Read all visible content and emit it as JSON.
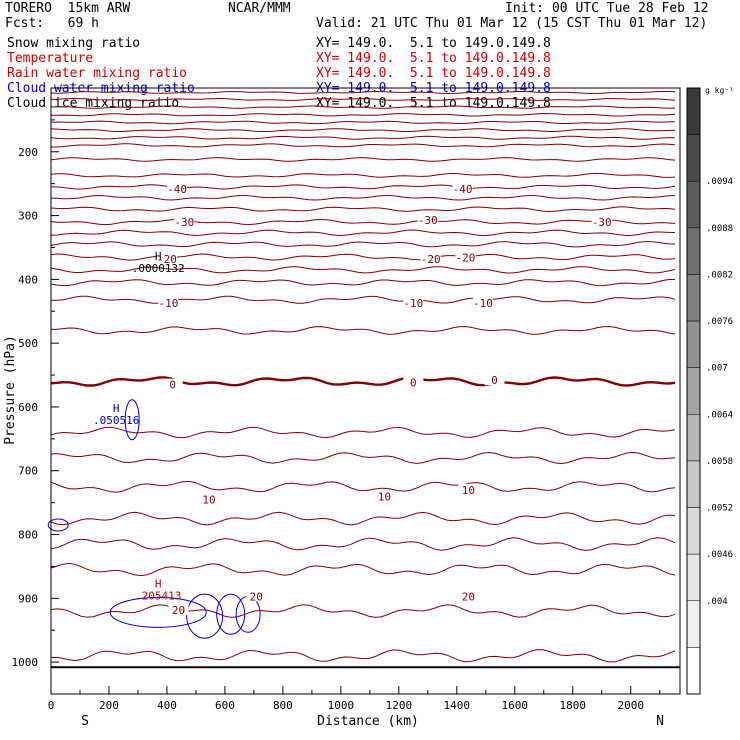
{
  "header": {
    "model": "TORERO  15km ARW",
    "org": "NCAR/MMM",
    "init": "Init: 00 UTC Tue 28 Feb 12",
    "fcst": "Fcst:   69 h",
    "valid": "Valid: 21 UTC Thu 01 Mar 12 (15 CST Thu 01 Mar 12)"
  },
  "legend_rows": [
    {
      "name": "Snow mixing ratio",
      "xy": "XY= 149.0.  5.1 to 149.0.149.8",
      "color": "#000000"
    },
    {
      "name": "Temperature",
      "xy": "XY= 149.0.  5.1 to 149.0.149.8",
      "color": "#cc0000"
    },
    {
      "name": "Rain water mixing ratio",
      "xy": "XY= 149.0.  5.1 to 149.0.149.8",
      "color": "#cc0000"
    },
    {
      "name": "Cloud water mixing ratio",
      "xy": "XY= 149.0.  5.1 to 149.0.149.8",
      "color": "#0000cc"
    },
    {
      "name": "Cloud ice mixing ratio",
      "xy": "XY= 149.0.  5.1 to 149.0.149.8",
      "color": "#000000"
    }
  ],
  "chart_data": {
    "type": "contour",
    "xlabel": "Distance (km)",
    "ylabel": "Pressure (hPa)",
    "xlim": [
      0,
      2170
    ],
    "ylim": [
      1050,
      100
    ],
    "x_ticks": [
      0,
      200,
      400,
      600,
      800,
      1000,
      1200,
      1400,
      1600,
      1800,
      2000
    ],
    "y_ticks": [
      200,
      300,
      400,
      500,
      600,
      700,
      800,
      900,
      1000
    ],
    "side_labels": {
      "left": "S",
      "right": "N"
    },
    "colorbar": {
      "unit": "g kg⁻¹",
      "labels": [
        ".0094",
        ".0088",
        ".0082",
        ".0076",
        ".007",
        ".0064",
        ".0058",
        ".0052",
        ".0046",
        ".004"
      ],
      "shades": [
        "#3a3a3a",
        "#4a4a4a",
        "#5c5c5c",
        "#6e6e6e",
        "#808080",
        "#929292",
        "#a4a4a4",
        "#b6b6b6",
        "#c8c8c8",
        "#dadada",
        "#e6e6e6",
        "#f0f0f0",
        "#ffffff"
      ]
    },
    "temperature_levels_hpa": [
      107,
      118,
      130,
      142,
      154,
      166,
      178,
      190,
      212,
      237,
      255,
      272,
      290,
      310,
      327,
      345,
      365,
      385,
      405,
      432,
      480,
      560,
      640,
      680,
      725,
      775,
      815,
      855,
      920,
      990
    ],
    "zero_isotherm_hpa": 560,
    "temperature_labels": [
      {
        "text": "-40",
        "x": 435,
        "p": 258
      },
      {
        "text": "-40",
        "x": 1420,
        "p": 258
      },
      {
        "text": "-30",
        "x": 460,
        "p": 310
      },
      {
        "text": "-30",
        "x": 1300,
        "p": 307
      },
      {
        "text": "-30",
        "x": 1900,
        "p": 310
      },
      {
        "text": "-20",
        "x": 400,
        "p": 368
      },
      {
        "text": "-20",
        "x": 1310,
        "p": 368
      },
      {
        "text": "-20",
        "x": 1430,
        "p": 366
      },
      {
        "text": "-10",
        "x": 405,
        "p": 437
      },
      {
        "text": "-10",
        "x": 1250,
        "p": 437
      },
      {
        "text": "-10",
        "x": 1490,
        "p": 437
      },
      {
        "text": "0",
        "x": 420,
        "p": 565
      },
      {
        "text": "0",
        "x": 1250,
        "p": 562
      },
      {
        "text": "0",
        "x": 1530,
        "p": 558
      },
      {
        "text": "10",
        "x": 545,
        "p": 745
      },
      {
        "text": "10",
        "x": 1150,
        "p": 740
      },
      {
        "text": "10",
        "x": 1440,
        "p": 730
      },
      {
        "text": "20",
        "x": 440,
        "p": 918
      },
      {
        "text": "20",
        "x": 708,
        "p": 897
      },
      {
        "text": "20",
        "x": 1440,
        "p": 897
      }
    ],
    "extrema_labels": [
      {
        "kind": "H",
        "value": ".0000132",
        "x": 370,
        "p": 370,
        "color": "#000000"
      },
      {
        "kind": "H",
        "value": ".050516",
        "x": 225,
        "p": 608,
        "color": "#0000cc"
      },
      {
        "kind": "H",
        "value": ".205413",
        "x": 370,
        "p": 883,
        "color": "#cc0000"
      }
    ]
  }
}
